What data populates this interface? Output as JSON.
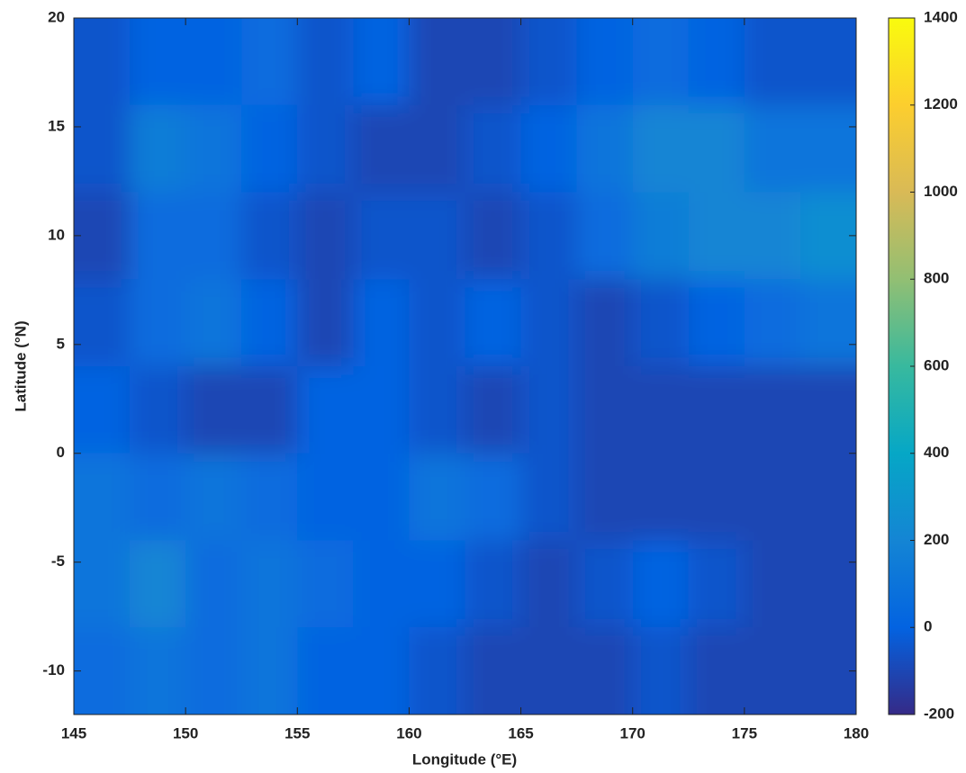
{
  "chart_data": {
    "type": "heatmap",
    "xlabel": "Longitude (°E)",
    "ylabel": "Latitude (°N)",
    "x": [
      146.25,
      148.75,
      151.25,
      153.75,
      156.25,
      158.75,
      161.25,
      163.75,
      166.25,
      168.75,
      171.25,
      173.75,
      176.25,
      178.75
    ],
    "y": [
      18,
      14,
      10,
      6,
      2,
      -2,
      -6,
      -10
    ],
    "z": [
      [
        -50,
        0,
        0,
        50,
        -50,
        0,
        -100,
        -100,
        -50,
        0,
        50,
        0,
        -50,
        -50
      ],
      [
        -50,
        150,
        100,
        0,
        -50,
        -100,
        -100,
        -50,
        0,
        100,
        200,
        200,
        100,
        100
      ],
      [
        -100,
        50,
        50,
        -50,
        -100,
        -50,
        -50,
        -100,
        -50,
        50,
        150,
        200,
        200,
        250
      ],
      [
        -50,
        50,
        100,
        0,
        -100,
        0,
        -50,
        0,
        -50,
        -100,
        -50,
        0,
        50,
        100
      ],
      [
        0,
        -50,
        -100,
        -100,
        0,
        0,
        -50,
        -100,
        -50,
        -100,
        -100,
        -100,
        -100,
        -100
      ],
      [
        100,
        50,
        100,
        50,
        0,
        0,
        100,
        50,
        -50,
        -100,
        -100,
        -100,
        -100,
        -100
      ],
      [
        100,
        200,
        50,
        100,
        50,
        0,
        0,
        -50,
        -100,
        -50,
        0,
        -50,
        -100,
        -100
      ],
      [
        50,
        100,
        50,
        100,
        0,
        0,
        -50,
        -100,
        -100,
        -100,
        -50,
        -100,
        -100,
        -100
      ]
    ],
    "xlim": [
      145,
      180
    ],
    "xticks": [
      145,
      150,
      155,
      160,
      165,
      170,
      175,
      180
    ],
    "ylim": [
      -12,
      20
    ],
    "yticks": [
      -10,
      -5,
      0,
      5,
      10,
      15,
      20
    ],
    "clim": [
      -200,
      1400
    ],
    "cticks": [
      -200,
      0,
      200,
      400,
      600,
      800,
      1000,
      1200,
      1400
    ],
    "colormap": [
      "#352a87",
      "#0363e1",
      "#1485d4",
      "#06a7c6",
      "#38b99e",
      "#92bf73",
      "#d9ba56",
      "#fcce2e",
      "#f9fb0e"
    ]
  }
}
